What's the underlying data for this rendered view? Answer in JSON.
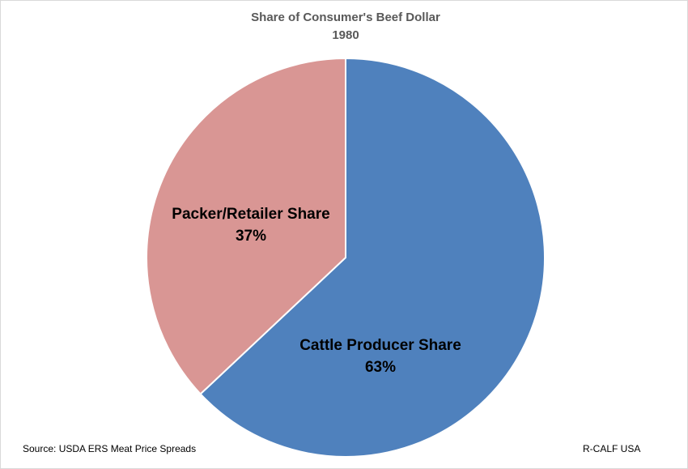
{
  "chart_data": {
    "type": "pie",
    "title": "Share of Consumer's Beef Dollar",
    "subtitle": "1980",
    "categories": [
      "Cattle Producer Share",
      "Packer/Retailer Share"
    ],
    "values": [
      63,
      37
    ],
    "value_labels": [
      "63%",
      "37%"
    ],
    "colors": [
      "#4f81bd",
      "#d99694"
    ],
    "source": "Source: USDA ERS Meat Price Spreads",
    "credit": "R-CALF USA"
  }
}
